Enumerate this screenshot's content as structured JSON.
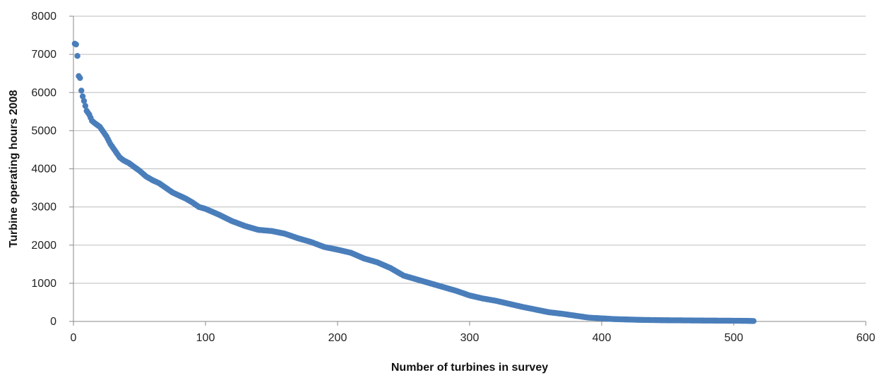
{
  "chart_data": {
    "type": "scatter",
    "title": "",
    "xlabel": "Number of turbines in survey",
    "ylabel": "Turbine operating hours 2008",
    "xlim": [
      0,
      600
    ],
    "ylim": [
      0,
      8000
    ],
    "x_ticks": [
      "0",
      "100",
      "200",
      "300",
      "400",
      "500",
      "600"
    ],
    "y_ticks": [
      "0",
      "1000",
      "2000",
      "3000",
      "4000",
      "5000",
      "6000",
      "7000",
      "8000"
    ],
    "grid": "horizontal",
    "legend": "none",
    "marker_color": "#4a7ebb",
    "series": [
      {
        "x": [
          1,
          2,
          3,
          4,
          5,
          6,
          7,
          8,
          9,
          10,
          12,
          14,
          16,
          18,
          20,
          22,
          25,
          28,
          32,
          35,
          38,
          42,
          46,
          50,
          55,
          60,
          65,
          70,
          75,
          80,
          85,
          90,
          95,
          100,
          110,
          120,
          130,
          140,
          150,
          160,
          170,
          180,
          190,
          200,
          210,
          220,
          230,
          240,
          250,
          260,
          270,
          280,
          290,
          300,
          310,
          320,
          330,
          340,
          350,
          360,
          370,
          380,
          390,
          400,
          410,
          420,
          430,
          440,
          450,
          460,
          470,
          480,
          490,
          500,
          510,
          515
        ],
        "y": [
          7280,
          7260,
          6960,
          6430,
          6380,
          6050,
          5900,
          5780,
          5650,
          5520,
          5420,
          5260,
          5200,
          5150,
          5100,
          5000,
          4850,
          4650,
          4450,
          4300,
          4220,
          4150,
          4050,
          3950,
          3800,
          3700,
          3620,
          3500,
          3380,
          3300,
          3220,
          3120,
          3000,
          2950,
          2800,
          2630,
          2500,
          2400,
          2370,
          2300,
          2180,
          2080,
          1950,
          1880,
          1800,
          1650,
          1550,
          1400,
          1200,
          1100,
          1000,
          900,
          800,
          680,
          600,
          540,
          460,
          380,
          310,
          240,
          200,
          150,
          100,
          80,
          60,
          50,
          40,
          35,
          30,
          28,
          25,
          22,
          20,
          18,
          15,
          10
        ]
      }
    ]
  }
}
